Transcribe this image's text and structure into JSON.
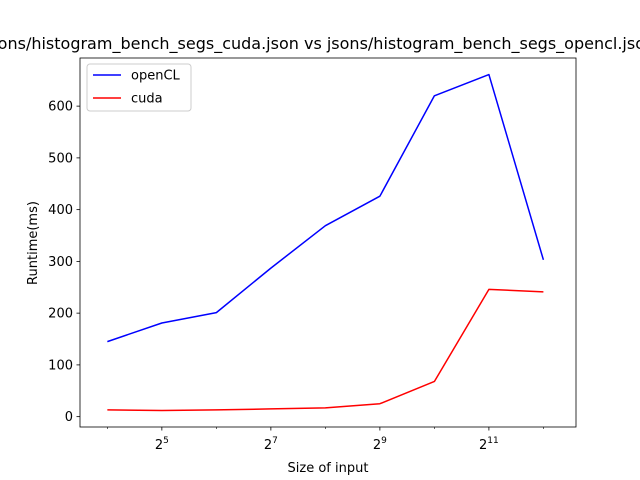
{
  "chart_data": {
    "type": "line",
    "title": "jsons/histogram_bench_segs_cuda.json vs jsons/histogram_bench_segs_opencl.json",
    "xlabel": "Size of input",
    "ylabel": "Runtime(ms)",
    "xscale": "log2",
    "xlim": [
      11.3,
      6200
    ],
    "ylim": [
      -20,
      693
    ],
    "x": [
      16,
      32,
      64,
      128,
      256,
      512,
      1024,
      2048,
      4096
    ],
    "x_ticks": [
      {
        "value": 32,
        "base": "2",
        "exp": "5"
      },
      {
        "value": 128,
        "base": "2",
        "exp": "7"
      },
      {
        "value": 512,
        "base": "2",
        "exp": "9"
      },
      {
        "value": 2048,
        "base": "2",
        "exp": "11"
      }
    ],
    "y_ticks": [
      0,
      100,
      200,
      300,
      400,
      500,
      600
    ],
    "legend_position": "top-left",
    "grid": false,
    "series": [
      {
        "name": "openCL",
        "color": "#0000ff",
        "values": [
          145,
          181,
          201,
          287,
          369,
          426,
          620,
          661,
          303
        ]
      },
      {
        "name": "cuda",
        "color": "#ff0000",
        "values": [
          13,
          12,
          13,
          15,
          17,
          25,
          68,
          246,
          241
        ]
      }
    ]
  }
}
